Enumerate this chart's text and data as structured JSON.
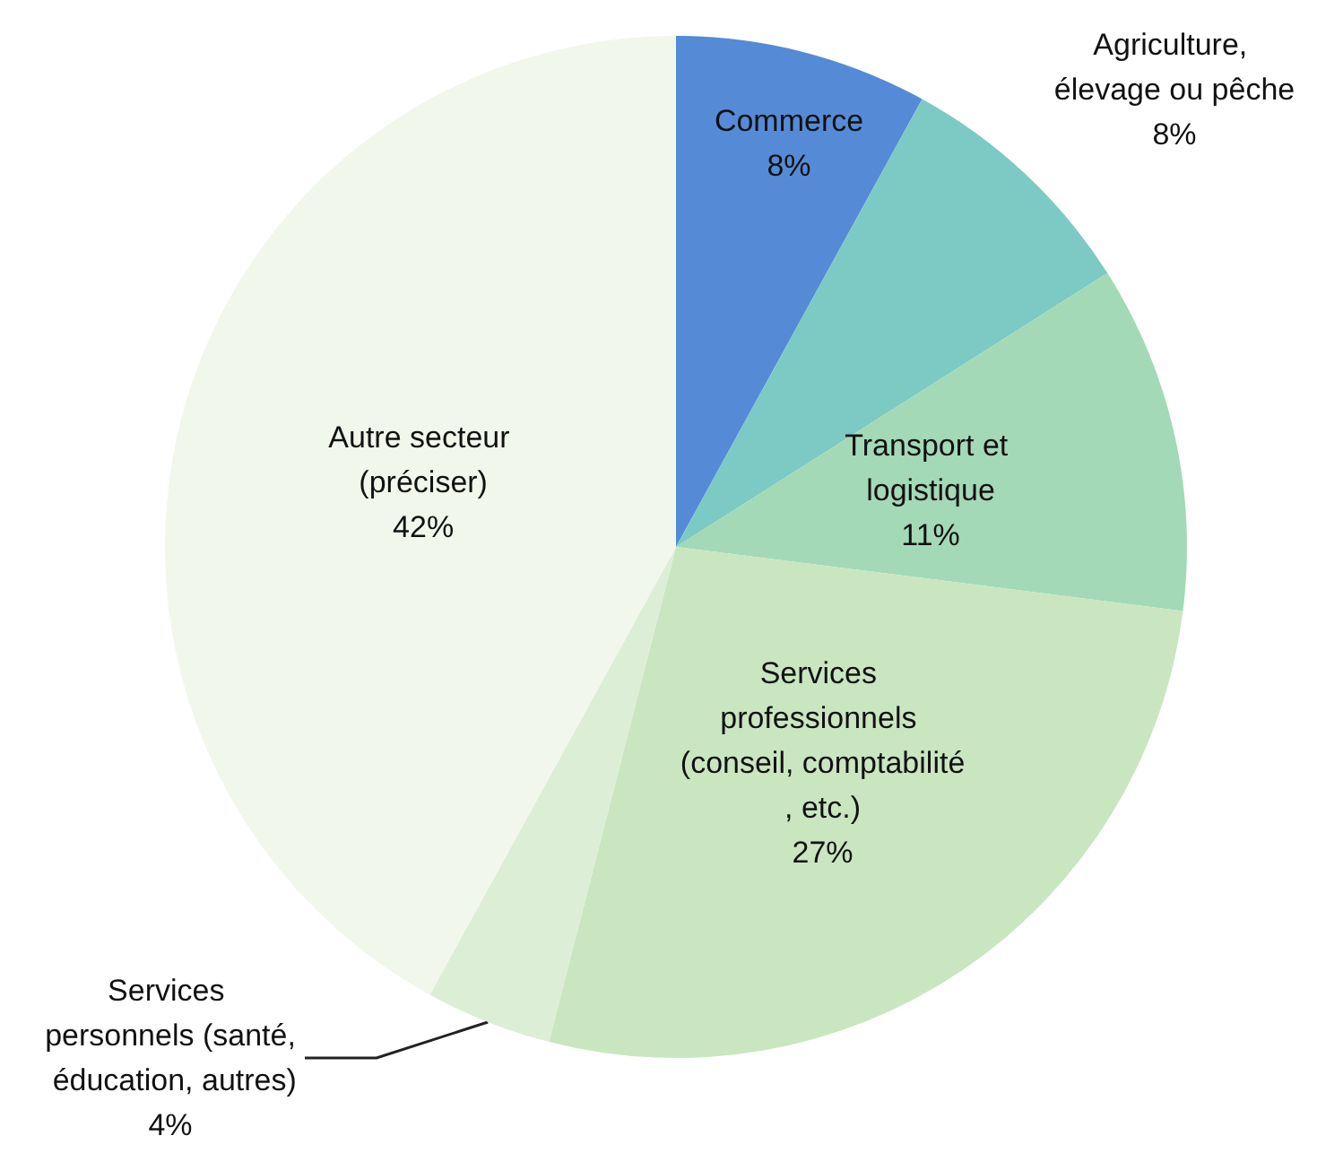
{
  "chart_data": {
    "type": "pie",
    "categories": [
      "Commerce",
      "Agriculture, élevage ou pêche",
      "Transport et logistique",
      "Services professionnels (conseil, comptabilité, etc.)",
      "Services personnels (santé, éducation, autres)",
      "Autre secteur (préciser)"
    ],
    "values": [
      8,
      8,
      11,
      27,
      4,
      42
    ],
    "value_labels": [
      "8%",
      "8%",
      "11%",
      "27%",
      "4%",
      "42%"
    ],
    "colors": [
      "#558bd6",
      "#7ccac3",
      "#a3d9b6",
      "#c9e6c0",
      "#ddeed6",
      "#f2f7ec"
    ],
    "legend": false
  }
}
